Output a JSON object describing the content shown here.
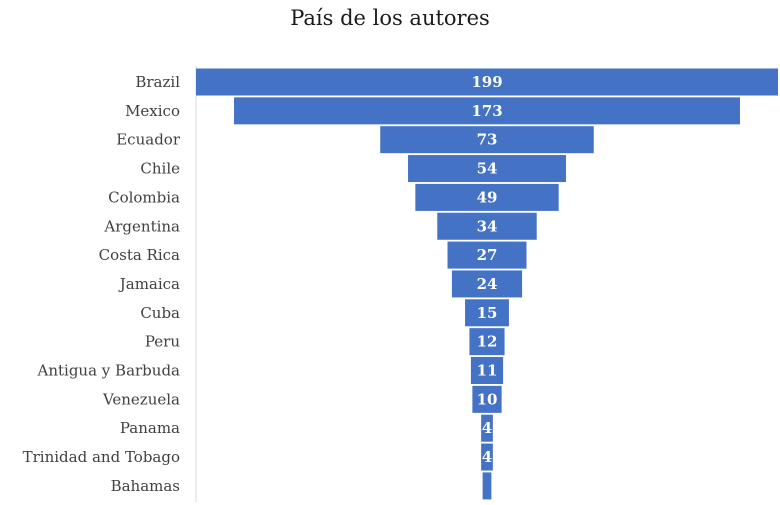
{
  "chart_data": {
    "type": "bar",
    "orientation": "horizontal",
    "style": "funnel (centered bars)",
    "title": "País de los autores",
    "categories": [
      "Brazil",
      "Mexico",
      "Ecuador",
      "Chile",
      "Colombia",
      "Argentina",
      "Costa Rica",
      "Jamaica",
      "Cuba",
      "Peru",
      "Antigua y Barbuda",
      "Venezuela",
      "Panama",
      "Trinidad and Tobago",
      "Bahamas"
    ],
    "values": [
      199,
      173,
      73,
      54,
      49,
      34,
      27,
      24,
      15,
      12,
      11,
      10,
      4,
      4,
      3
    ],
    "data_labels": [
      "199",
      "173",
      "73",
      "54",
      "49",
      "34",
      "27",
      "24",
      "15",
      "12",
      "11",
      "10",
      "4",
      "4",
      ""
    ],
    "bar_color": "#4472C4",
    "grid": false,
    "legend": "none"
  }
}
